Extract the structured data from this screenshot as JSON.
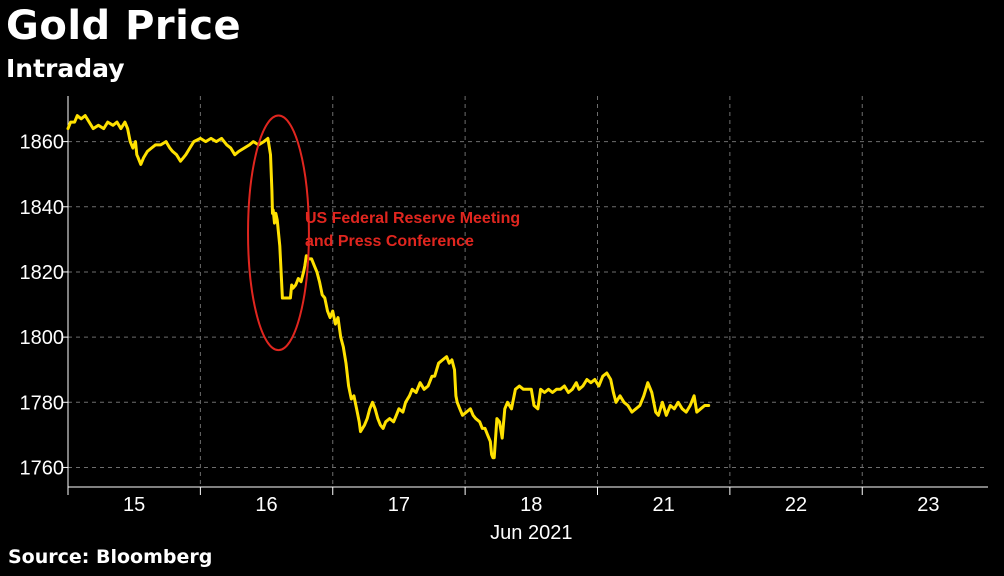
{
  "header": {
    "title": "Gold Price",
    "subtitle": "Intraday"
  },
  "footer": {
    "source": "Source: Bloomberg"
  },
  "colors": {
    "background": "#000000",
    "line": "#ffe100",
    "grid": "#6e6e6e",
    "annotation": "#e0261f",
    "text": "#ffffff"
  },
  "chart_data": {
    "type": "line",
    "title": "Gold Price",
    "subtitle": "Intraday",
    "xlabel": "Jun 2021",
    "ylabel": "",
    "ylim": [
      1754,
      1874
    ],
    "yticks": [
      1760,
      1780,
      1800,
      1820,
      1840,
      1860
    ],
    "xlim": [
      0,
      6.95
    ],
    "xticks": [
      {
        "label": "15",
        "x": 0.5
      },
      {
        "label": "16",
        "x": 1.5
      },
      {
        "label": "17",
        "x": 2.5
      },
      {
        "label": "18",
        "x": 3.5
      },
      {
        "label": "21",
        "x": 4.5
      },
      {
        "label": "22",
        "x": 5.5
      },
      {
        "label": "23",
        "x": 6.5
      }
    ],
    "x_sublabel": "Jun 2021",
    "grid": true,
    "legend": "none",
    "series": [
      {
        "points": [
          [
            0.0,
            1864
          ],
          [
            0.02,
            1866
          ],
          [
            0.05,
            1866
          ],
          [
            0.07,
            1868
          ],
          [
            0.1,
            1867
          ],
          [
            0.13,
            1868
          ],
          [
            0.16,
            1866
          ],
          [
            0.19,
            1864
          ],
          [
            0.23,
            1865
          ],
          [
            0.27,
            1864
          ],
          [
            0.3,
            1866
          ],
          [
            0.34,
            1865
          ],
          [
            0.37,
            1866
          ],
          [
            0.4,
            1864
          ],
          [
            0.43,
            1866
          ],
          [
            0.45,
            1864
          ],
          [
            0.47,
            1860
          ],
          [
            0.49,
            1858
          ],
          [
            0.51,
            1860
          ],
          [
            0.52,
            1856
          ],
          [
            0.53,
            1855
          ],
          [
            0.55,
            1853
          ],
          [
            0.57,
            1855
          ],
          [
            0.6,
            1857
          ],
          [
            0.63,
            1858
          ],
          [
            0.66,
            1859
          ],
          [
            0.7,
            1859
          ],
          [
            0.74,
            1860
          ],
          [
            0.77,
            1858
          ],
          [
            0.79,
            1857
          ],
          [
            0.82,
            1856
          ],
          [
            0.85,
            1854
          ],
          [
            0.87,
            1855
          ],
          [
            0.89,
            1856
          ],
          [
            0.92,
            1858
          ],
          [
            0.95,
            1860
          ],
          [
            1.0,
            1861
          ],
          [
            1.04,
            1860
          ],
          [
            1.08,
            1861
          ],
          [
            1.12,
            1860
          ],
          [
            1.16,
            1861
          ],
          [
            1.2,
            1859
          ],
          [
            1.23,
            1858
          ],
          [
            1.26,
            1856
          ],
          [
            1.29,
            1857
          ],
          [
            1.33,
            1858
          ],
          [
            1.37,
            1859
          ],
          [
            1.4,
            1860
          ],
          [
            1.44,
            1859
          ],
          [
            1.48,
            1860
          ],
          [
            1.51,
            1861
          ],
          [
            1.53,
            1856
          ],
          [
            1.54,
            1845
          ],
          [
            1.545,
            1838
          ],
          [
            1.55,
            1839
          ],
          [
            1.56,
            1835
          ],
          [
            1.57,
            1838
          ],
          [
            1.58,
            1836
          ],
          [
            1.6,
            1828
          ],
          [
            1.61,
            1820
          ],
          [
            1.62,
            1812
          ],
          [
            1.64,
            1812
          ],
          [
            1.66,
            1812
          ],
          [
            1.68,
            1812
          ],
          [
            1.69,
            1816
          ],
          [
            1.7,
            1815
          ],
          [
            1.72,
            1816
          ],
          [
            1.74,
            1818
          ],
          [
            1.76,
            1817
          ],
          [
            1.78,
            1820
          ],
          [
            1.79,
            1822
          ],
          [
            1.8,
            1825
          ],
          [
            1.82,
            1824
          ],
          [
            1.84,
            1824
          ],
          [
            1.86,
            1822
          ],
          [
            1.88,
            1820
          ],
          [
            1.9,
            1817
          ],
          [
            1.92,
            1813
          ],
          [
            1.94,
            1812
          ],
          [
            1.96,
            1808
          ],
          [
            1.98,
            1806
          ],
          [
            2.0,
            1808
          ],
          [
            2.02,
            1804
          ],
          [
            2.04,
            1806
          ],
          [
            2.06,
            1800
          ],
          [
            2.08,
            1797
          ],
          [
            2.1,
            1792
          ],
          [
            2.12,
            1785
          ],
          [
            2.14,
            1781
          ],
          [
            2.16,
            1782
          ],
          [
            2.18,
            1778
          ],
          [
            2.2,
            1774
          ],
          [
            2.21,
            1771
          ],
          [
            2.24,
            1773
          ],
          [
            2.26,
            1775
          ],
          [
            2.28,
            1778
          ],
          [
            2.3,
            1780
          ],
          [
            2.32,
            1778
          ],
          [
            2.34,
            1775
          ],
          [
            2.36,
            1773
          ],
          [
            2.38,
            1772
          ],
          [
            2.4,
            1774
          ],
          [
            2.43,
            1775
          ],
          [
            2.46,
            1774
          ],
          [
            2.48,
            1776
          ],
          [
            2.5,
            1778
          ],
          [
            2.53,
            1777
          ],
          [
            2.55,
            1780
          ],
          [
            2.58,
            1782
          ],
          [
            2.6,
            1784
          ],
          [
            2.63,
            1783
          ],
          [
            2.66,
            1786
          ],
          [
            2.69,
            1784
          ],
          [
            2.72,
            1785
          ],
          [
            2.75,
            1788
          ],
          [
            2.77,
            1788
          ],
          [
            2.8,
            1792
          ],
          [
            2.83,
            1793
          ],
          [
            2.86,
            1794
          ],
          [
            2.88,
            1792
          ],
          [
            2.9,
            1793
          ],
          [
            2.92,
            1790
          ],
          [
            2.93,
            1782
          ],
          [
            2.94,
            1780
          ],
          [
            2.96,
            1778
          ],
          [
            2.98,
            1776
          ],
          [
            3.01,
            1777
          ],
          [
            3.04,
            1778
          ],
          [
            3.06,
            1776
          ],
          [
            3.08,
            1775
          ],
          [
            3.11,
            1774
          ],
          [
            3.13,
            1772
          ],
          [
            3.15,
            1772
          ],
          [
            3.17,
            1770
          ],
          [
            3.19,
            1768
          ],
          [
            3.2,
            1764
          ],
          [
            3.21,
            1763
          ],
          [
            3.22,
            1763
          ],
          [
            3.24,
            1775
          ],
          [
            3.26,
            1774
          ],
          [
            3.28,
            1769
          ],
          [
            3.3,
            1778
          ],
          [
            3.32,
            1780
          ],
          [
            3.35,
            1778
          ],
          [
            3.38,
            1784
          ],
          [
            3.41,
            1785
          ],
          [
            3.44,
            1784
          ],
          [
            3.47,
            1784
          ],
          [
            3.5,
            1784
          ],
          [
            3.52,
            1779
          ],
          [
            3.55,
            1778
          ],
          [
            3.57,
            1784
          ],
          [
            3.6,
            1783
          ],
          [
            3.63,
            1784
          ],
          [
            3.66,
            1783
          ],
          [
            3.69,
            1784
          ],
          [
            3.72,
            1784
          ],
          [
            3.75,
            1785
          ],
          [
            3.78,
            1783
          ],
          [
            3.81,
            1784
          ],
          [
            3.84,
            1786
          ],
          [
            3.86,
            1784
          ],
          [
            3.89,
            1785
          ],
          [
            3.92,
            1787
          ],
          [
            3.95,
            1786
          ],
          [
            3.98,
            1787
          ],
          [
            4.01,
            1785
          ],
          [
            4.04,
            1788
          ],
          [
            4.07,
            1789
          ],
          [
            4.1,
            1787
          ],
          [
            4.12,
            1783
          ],
          [
            4.14,
            1780
          ],
          [
            4.17,
            1782
          ],
          [
            4.2,
            1780
          ],
          [
            4.23,
            1779
          ],
          [
            4.26,
            1777
          ],
          [
            4.29,
            1778
          ],
          [
            4.32,
            1779
          ],
          [
            4.35,
            1782
          ],
          [
            4.38,
            1786
          ],
          [
            4.41,
            1783
          ],
          [
            4.44,
            1777
          ],
          [
            4.46,
            1776
          ],
          [
            4.49,
            1780
          ],
          [
            4.52,
            1776
          ],
          [
            4.55,
            1779
          ],
          [
            4.58,
            1778
          ],
          [
            4.61,
            1780
          ],
          [
            4.64,
            1778
          ],
          [
            4.67,
            1777
          ],
          [
            4.7,
            1779
          ],
          [
            4.73,
            1782
          ],
          [
            4.75,
            1777
          ],
          [
            4.78,
            1778
          ],
          [
            4.81,
            1779
          ],
          [
            4.84,
            1779
          ]
        ]
      }
    ],
    "annotations": [
      {
        "text": "US Federal Reserve Meeting",
        "x": 1.79,
        "y": 1835
      },
      {
        "text": "and Press Conference",
        "x": 1.79,
        "y": 1828
      }
    ],
    "highlight_ellipse": {
      "cx": 1.59,
      "cy": 1832,
      "rx": 0.23,
      "ry": 36
    }
  }
}
